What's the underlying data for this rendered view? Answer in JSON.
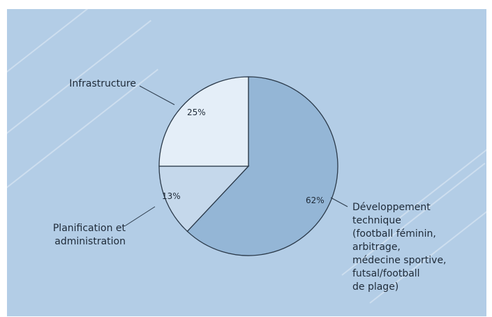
{
  "chart_data": {
    "type": "pie",
    "title": "",
    "slices": [
      {
        "label_lines": [
          "Développement",
          "technique",
          "(football féminin,",
          "arbitrage,",
          "médecine sportive,",
          "futsal/football",
          "de plage)"
        ],
        "value": 62,
        "value_label": "62%",
        "color": "#94b6d6"
      },
      {
        "label_lines": [
          "Planification et",
          "administration"
        ],
        "value": 13,
        "value_label": "13%",
        "color": "#c5d8eb"
      },
      {
        "label_lines": [
          "Infrastructure"
        ],
        "value": 25,
        "value_label": "25%",
        "color": "#e4eef8"
      }
    ],
    "start_angle_deg": 0,
    "direction": "clockwise",
    "legend": "none"
  },
  "colors": {
    "background": "#b3cde6",
    "outline": "#2b3a4a"
  }
}
